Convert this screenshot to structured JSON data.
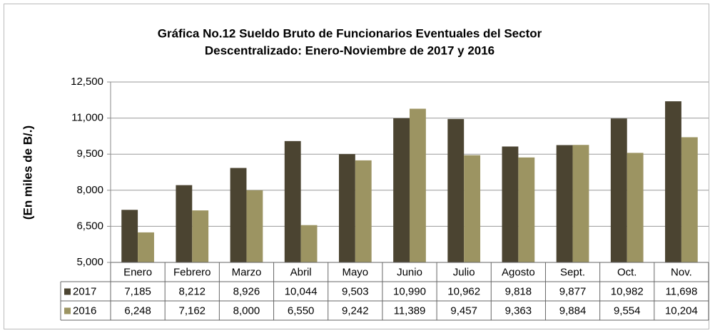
{
  "chart_data": {
    "type": "bar",
    "title": "Gráfica No.12 Sueldo Bruto de Funcionarios Eventuales del Sector",
    "subtitle": "Descentralizado: Enero-Noviembre de 2017 y 2016",
    "y_label": "(En miles de B/.)",
    "categories": [
      "Enero",
      "Febrero",
      "Marzo",
      "Abril",
      "Mayo",
      "Junio",
      "Julio",
      "Agosto",
      "Sept.",
      "Oct.",
      "Nov."
    ],
    "series": [
      {
        "name": "2017",
        "color": "#4b4431",
        "values": [
          7185,
          8212,
          8926,
          10044,
          9503,
          10990,
          10962,
          9818,
          9877,
          10982,
          11698
        ],
        "value_labels": [
          "7,185",
          "8,212",
          "8,926",
          "10,044",
          "9,503",
          "10,990",
          "10,962",
          "9,818",
          "9,877",
          "10,982",
          "11,698"
        ]
      },
      {
        "name": "2016",
        "color": "#9c9462",
        "values": [
          6248,
          7162,
          8000,
          6550,
          9242,
          11389,
          9457,
          9363,
          9884,
          9554,
          10204
        ],
        "value_labels": [
          "6,248",
          "7,162",
          "8,000",
          "6,550",
          "9,242",
          "11,389",
          "9,457",
          "9,363",
          "9,884",
          "9,554",
          "10,204"
        ]
      }
    ],
    "ylim": [
      5000,
      12500
    ],
    "yticks": [
      {
        "value": 5000,
        "label": "5,000"
      },
      {
        "value": 6500,
        "label": "6,500"
      },
      {
        "value": 8000,
        "label": "8,000"
      },
      {
        "value": 9500,
        "label": "9,500"
      },
      {
        "value": 11000,
        "label": "11,000"
      },
      {
        "value": 12500,
        "label": "12,500"
      }
    ],
    "grid": true
  }
}
